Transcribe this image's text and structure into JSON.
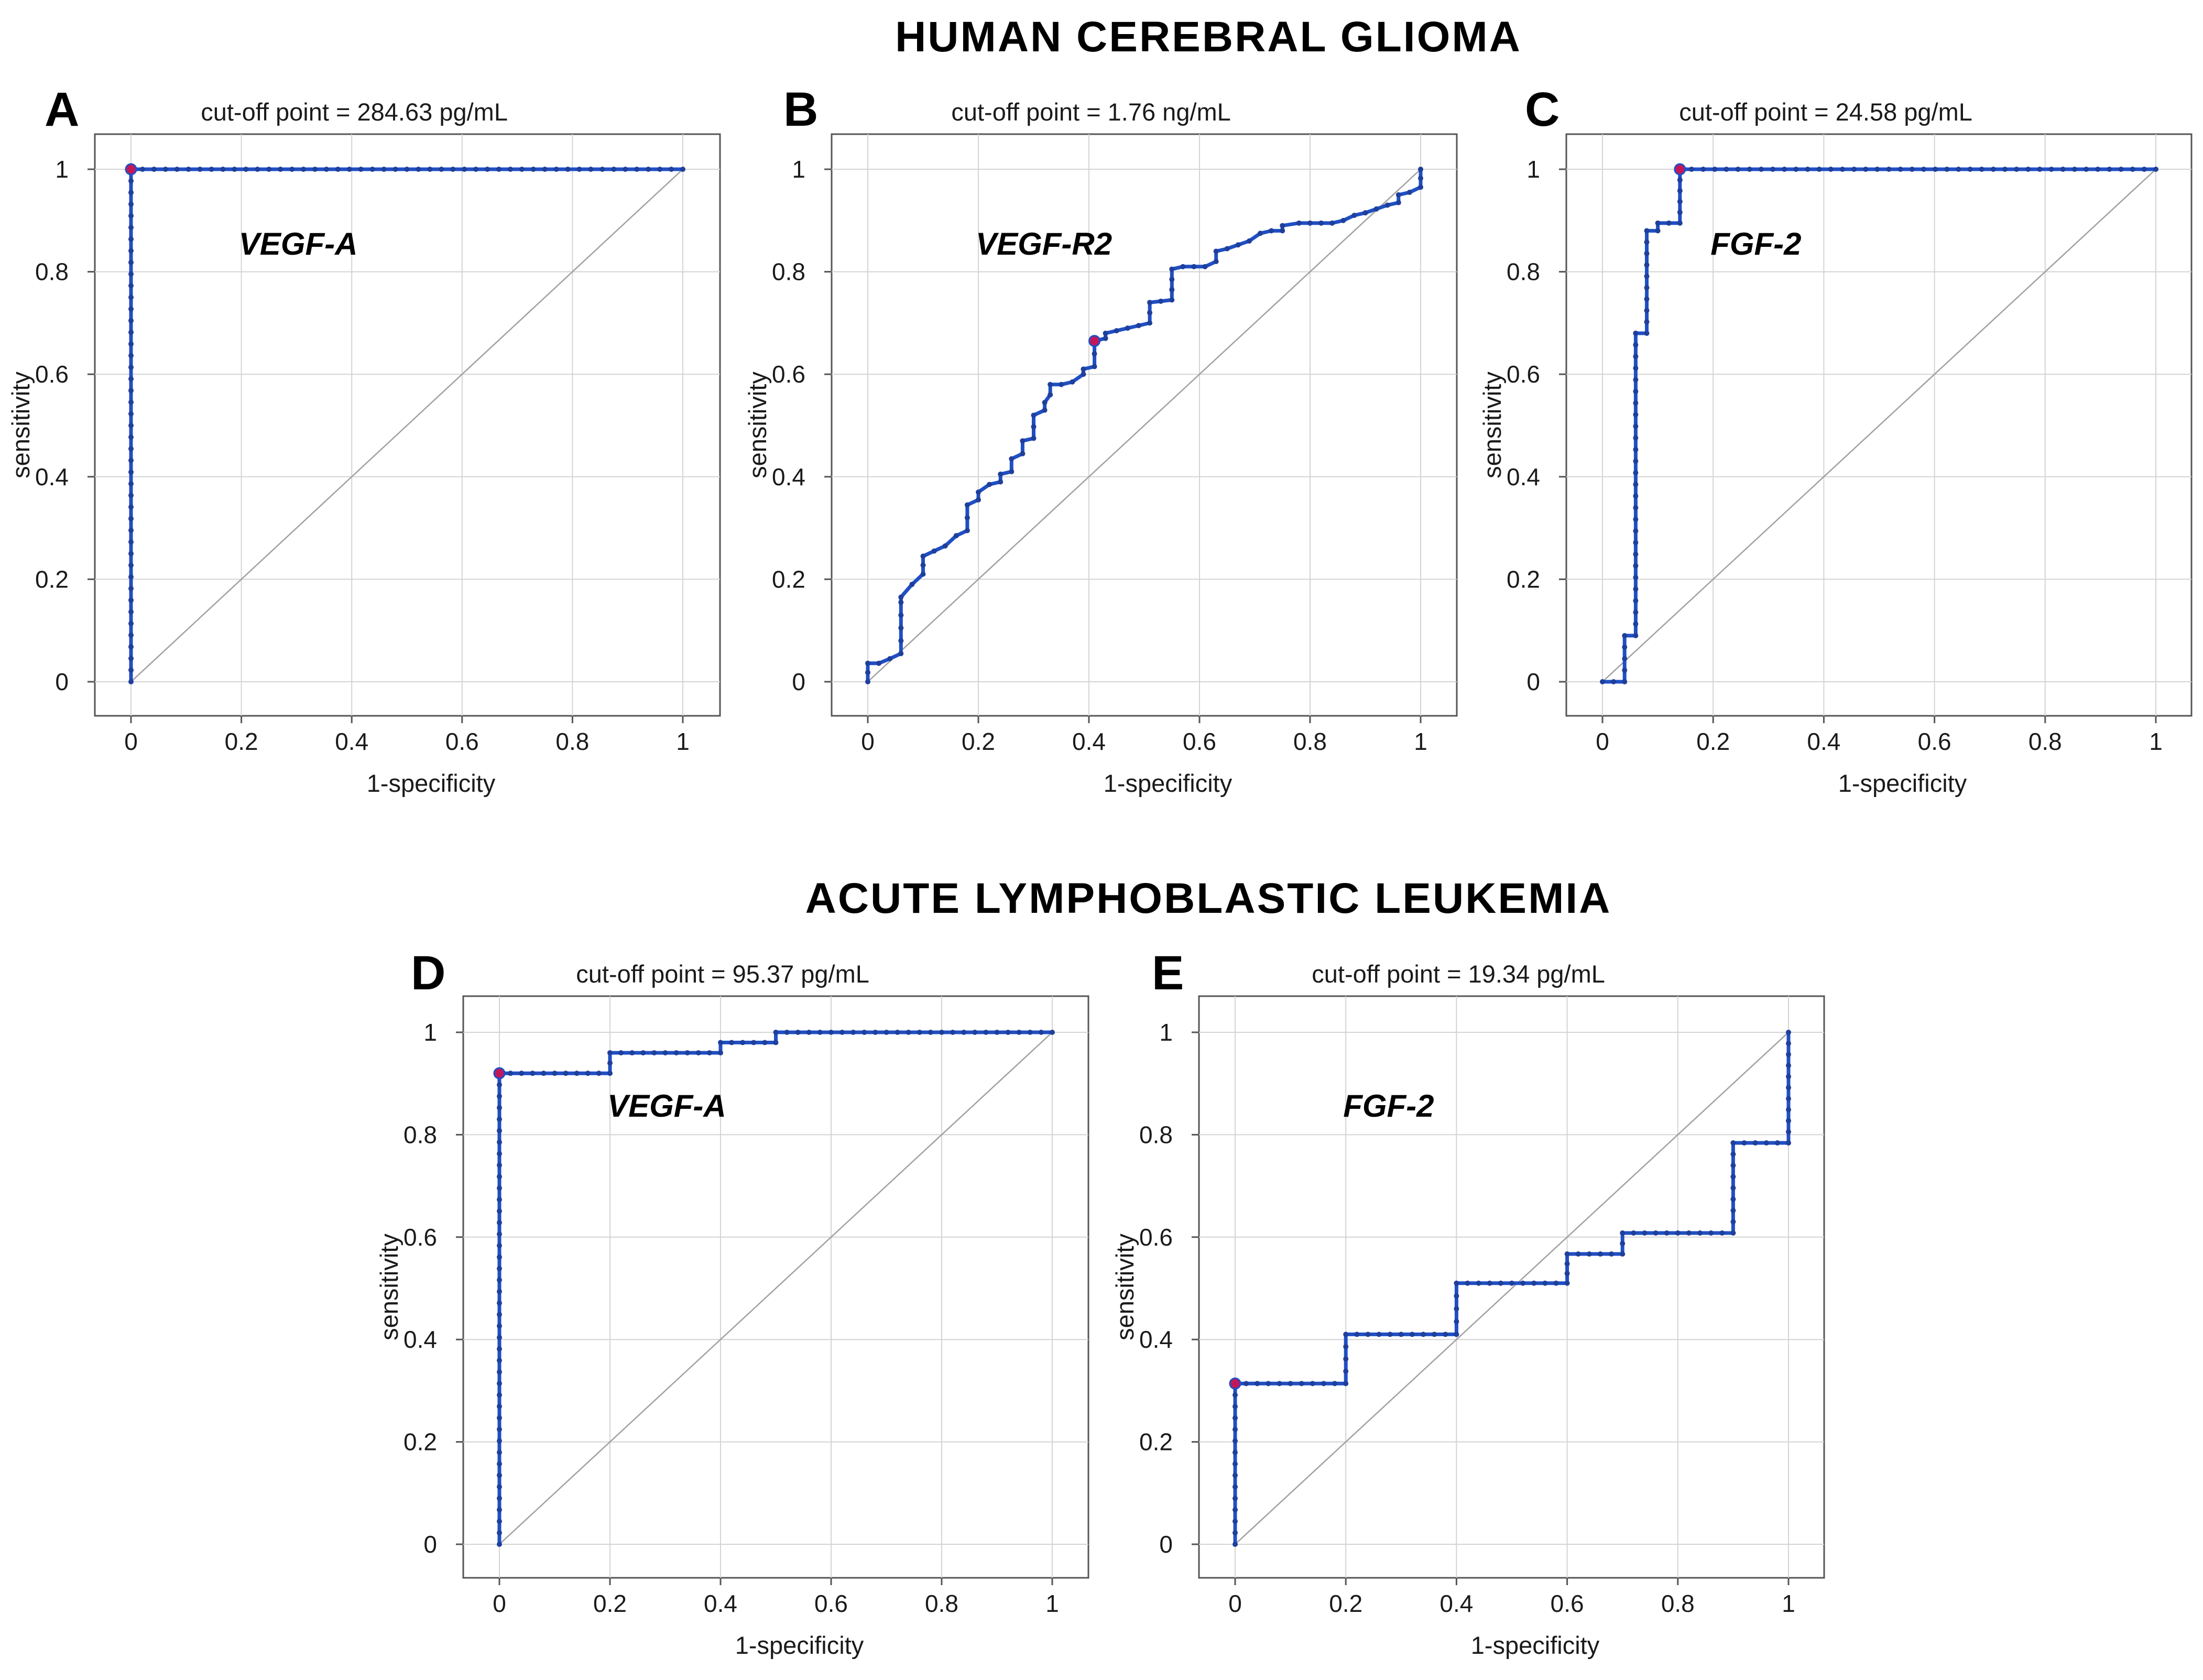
{
  "headings": {
    "top": "HUMAN  CEREBRAL  GLIOMA",
    "bottom": "ACUTE  LYMPHOBLASTIC  LEUKEMIA"
  },
  "colors": {
    "curve": "#1f4fc4",
    "point": "#1f3f9a",
    "cutoff_point": "#c2185b",
    "diagonal": "#a0a0a0",
    "grid": "#d4d4d4",
    "frame": "#555555"
  },
  "chart_data": [
    {
      "panel": "A",
      "type": "line",
      "title": "cut-off point = 284.63 pg/mL",
      "marker": "VEGF-A",
      "xlabel": "1-specificity",
      "ylabel": "sensitivity",
      "xlim": [
        0,
        1
      ],
      "ylim": [
        0,
        1
      ],
      "xticks": [
        "0",
        "0.2",
        "0.4",
        "0.6",
        "0.8",
        "1"
      ],
      "yticks": [
        "0",
        "0.2",
        "0.4",
        "0.6",
        "0.8",
        "1"
      ],
      "grid": true,
      "reference_line": "diagonal",
      "x": [
        0,
        0,
        1
      ],
      "y": [
        0,
        1,
        1
      ],
      "cutoff": [
        0,
        1
      ]
    },
    {
      "panel": "B",
      "type": "line",
      "title": "cut-off point = 1.76 ng/mL",
      "marker": "VEGF-R2",
      "xlabel": "1-specificity",
      "ylabel": "sensitivity",
      "xlim": [
        0,
        1
      ],
      "ylim": [
        0,
        1
      ],
      "xticks": [
        "0",
        "0.2",
        "0.4",
        "0.6",
        "0.8",
        "1"
      ],
      "yticks": [
        "0",
        "0.2",
        "0.4",
        "0.6",
        "0.8",
        "1"
      ],
      "grid": true,
      "reference_line": "diagonal",
      "x": [
        0,
        0,
        0.02,
        0.04,
        0.06,
        0.06,
        0.06,
        0.08,
        0.1,
        0.1,
        0.12,
        0.14,
        0.16,
        0.18,
        0.18,
        0.2,
        0.2,
        0.22,
        0.24,
        0.24,
        0.26,
        0.26,
        0.28,
        0.28,
        0.3,
        0.3,
        0.32,
        0.32,
        0.33,
        0.33,
        0.35,
        0.37,
        0.39,
        0.39,
        0.41,
        0.41,
        0.43,
        0.43,
        0.47,
        0.51,
        0.51,
        0.55,
        0.55,
        0.57,
        0.61,
        0.63,
        0.63,
        0.65,
        0.69,
        0.71,
        0.73,
        0.75,
        0.75,
        0.78,
        0.82,
        0.84,
        0.86,
        0.88,
        0.9,
        0.9,
        0.94,
        0.96,
        0.96,
        0.98,
        1,
        1
      ],
      "y": [
        0,
        0.036,
        0.036,
        0.045,
        0.055,
        0.155,
        0.165,
        0.19,
        0.21,
        0.245,
        0.255,
        0.265,
        0.285,
        0.295,
        0.345,
        0.355,
        0.37,
        0.385,
        0.39,
        0.405,
        0.41,
        0.435,
        0.445,
        0.47,
        0.475,
        0.52,
        0.53,
        0.545,
        0.56,
        0.58,
        0.58,
        0.585,
        0.6,
        0.61,
        0.615,
        0.665,
        0.67,
        0.68,
        0.69,
        0.7,
        0.74,
        0.745,
        0.805,
        0.81,
        0.81,
        0.82,
        0.84,
        0.845,
        0.86,
        0.875,
        0.88,
        0.88,
        0.89,
        0.895,
        0.895,
        0.895,
        0.9,
        0.91,
        0.915,
        0.915,
        0.93,
        0.935,
        0.95,
        0.955,
        0.965,
        1
      ],
      "cutoff": [
        0.41,
        0.665
      ]
    },
    {
      "panel": "C",
      "type": "line",
      "title": "cut-off point = 24.58 pg/mL",
      "marker": "FGF-2",
      "xlabel": "1-specificity",
      "ylabel": "sensitivity",
      "xlim": [
        0,
        1
      ],
      "ylim": [
        0,
        1
      ],
      "xticks": [
        "0",
        "0.2",
        "0.4",
        "0.6",
        "0.8",
        "1"
      ],
      "yticks": [
        "0",
        "0.2",
        "0.4",
        "0.6",
        "0.8",
        "1"
      ],
      "grid": true,
      "reference_line": "diagonal",
      "x": [
        0,
        0.02,
        0.04,
        0.04,
        0.06,
        0.06,
        0.06,
        0.08,
        0.08,
        0.1,
        0.1,
        0.12,
        0.14,
        0.14,
        1
      ],
      "y": [
        0,
        0,
        0,
        0.09,
        0.09,
        0.68,
        0.68,
        0.68,
        0.88,
        0.88,
        0.895,
        0.895,
        0.895,
        1,
        1
      ],
      "cutoff": [
        0.14,
        1
      ]
    },
    {
      "panel": "D",
      "type": "line",
      "title": "cut-off point = 95.37 pg/mL",
      "marker": "VEGF-A",
      "xlabel": "1-specificity",
      "ylabel": "sensitivity",
      "xlim": [
        0,
        1
      ],
      "ylim": [
        0,
        1
      ],
      "xticks": [
        "0",
        "0.2",
        "0.4",
        "0.6",
        "0.8",
        "1"
      ],
      "yticks": [
        "0",
        "0.2",
        "0.4",
        "0.6",
        "0.8",
        "1"
      ],
      "grid": true,
      "reference_line": "diagonal",
      "x": [
        0,
        0,
        0.1,
        0.2,
        0.2,
        0.3,
        0.4,
        0.4,
        0.5,
        0.5,
        0.6,
        0.7,
        0.8,
        0.9,
        1
      ],
      "y": [
        0,
        0.92,
        0.92,
        0.92,
        0.96,
        0.96,
        0.96,
        0.98,
        0.98,
        1,
        1,
        1,
        1,
        1,
        1
      ],
      "cutoff": [
        0,
        0.92
      ]
    },
    {
      "panel": "E",
      "type": "line",
      "title": "cut-off point = 19.34 pg/mL",
      "marker": "FGF-2",
      "xlabel": "1-specificity",
      "ylabel": "sensitivity",
      "xlim": [
        0,
        1
      ],
      "ylim": [
        0,
        1
      ],
      "xticks": [
        "0",
        "0.2",
        "0.4",
        "0.6",
        "0.8",
        "1"
      ],
      "yticks": [
        "0",
        "0.2",
        "0.4",
        "0.6",
        "0.8",
        "1"
      ],
      "grid": true,
      "reference_line": "diagonal",
      "x": [
        0,
        0,
        0.1,
        0.2,
        0.2,
        0.3,
        0.4,
        0.4,
        0.5,
        0.6,
        0.6,
        0.7,
        0.7,
        0.8,
        0.9,
        0.9,
        1,
        1
      ],
      "y": [
        0,
        0.314,
        0.314,
        0.314,
        0.41,
        0.41,
        0.41,
        0.51,
        0.51,
        0.51,
        0.567,
        0.567,
        0.608,
        0.608,
        0.608,
        0.784,
        0.784,
        1
      ],
      "cutoff": [
        0,
        0.314
      ]
    }
  ]
}
